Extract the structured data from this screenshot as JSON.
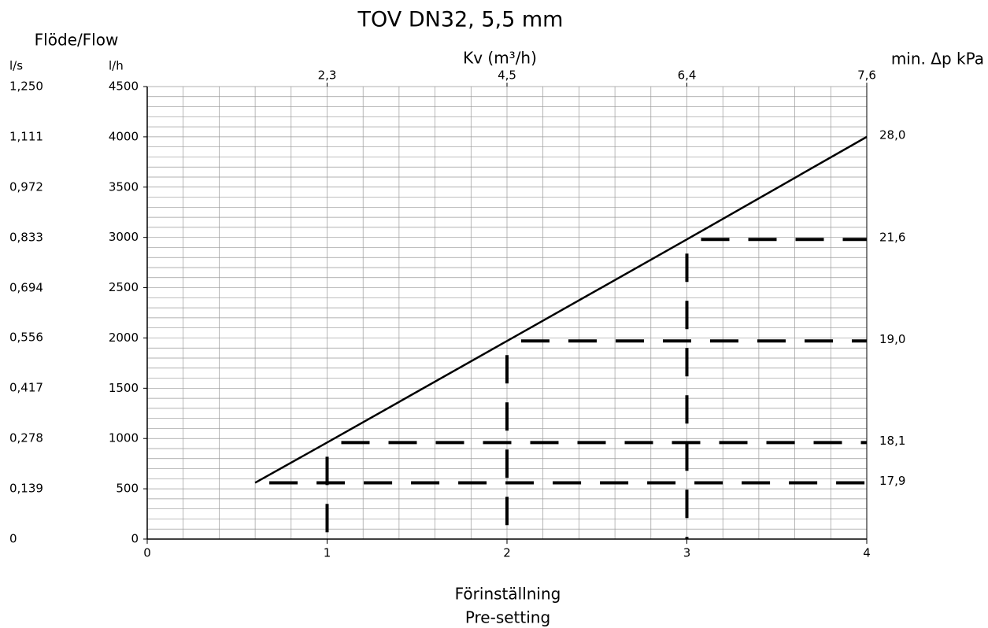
{
  "chart_data": {
    "type": "line",
    "title": "TOV DN32, 5,5 mm",
    "left_header": "Flöde/Flow",
    "ylabel": "l/h",
    "y2label": "l/s",
    "top_axis_label": "Kv (m³/h)",
    "right_axis_label": "min. Δp kPa",
    "xlabel": [
      "Förinställning",
      "Pre-setting"
    ],
    "xlim": [
      0,
      4
    ],
    "xticks": [
      0,
      1,
      2,
      3,
      4
    ],
    "ylim": [
      0,
      4500
    ],
    "yticks": [
      0,
      500,
      1000,
      1500,
      2000,
      2500,
      3000,
      3500,
      4000,
      4500
    ],
    "y2lim": [
      0,
      1.25
    ],
    "y2ticks": [
      {
        "value": 0,
        "label": "0"
      },
      {
        "value": 0.139,
        "label": "0,139"
      },
      {
        "value": 0.278,
        "label": "0,278"
      },
      {
        "value": 0.417,
        "label": "0,417"
      },
      {
        "value": 0.556,
        "label": "0,556"
      },
      {
        "value": 0.694,
        "label": "0,694"
      },
      {
        "value": 0.833,
        "label": "0,833"
      },
      {
        "value": 0.972,
        "label": "0,972"
      },
      {
        "value": 1.111,
        "label": "1,111"
      },
      {
        "value": 1.25,
        "label": "1,250"
      }
    ],
    "top_ticks": [
      {
        "value": 1,
        "label": "2,3"
      },
      {
        "value": 2,
        "label": "4,5"
      },
      {
        "value": 3,
        "label": "6,4"
      },
      {
        "value": 4,
        "label": "7,6"
      }
    ],
    "right_labels": [
      {
        "value": 4000,
        "label": "28,0"
      },
      {
        "value": 2980,
        "label": "21,6"
      },
      {
        "value": 1970,
        "label": "19,0"
      },
      {
        "value": 960,
        "label": "18,1"
      },
      {
        "value": 560,
        "label": "17,9"
      }
    ],
    "grid": true,
    "grid_minor": {
      "x": 0.2,
      "y": 100
    },
    "dashed_guides": true,
    "x": [
      0.6,
      1,
      2,
      3,
      4
    ],
    "series": [
      {
        "color": "#000000",
        "values": [
          560,
          960,
          1970,
          2980,
          4000
        ]
      }
    ]
  }
}
